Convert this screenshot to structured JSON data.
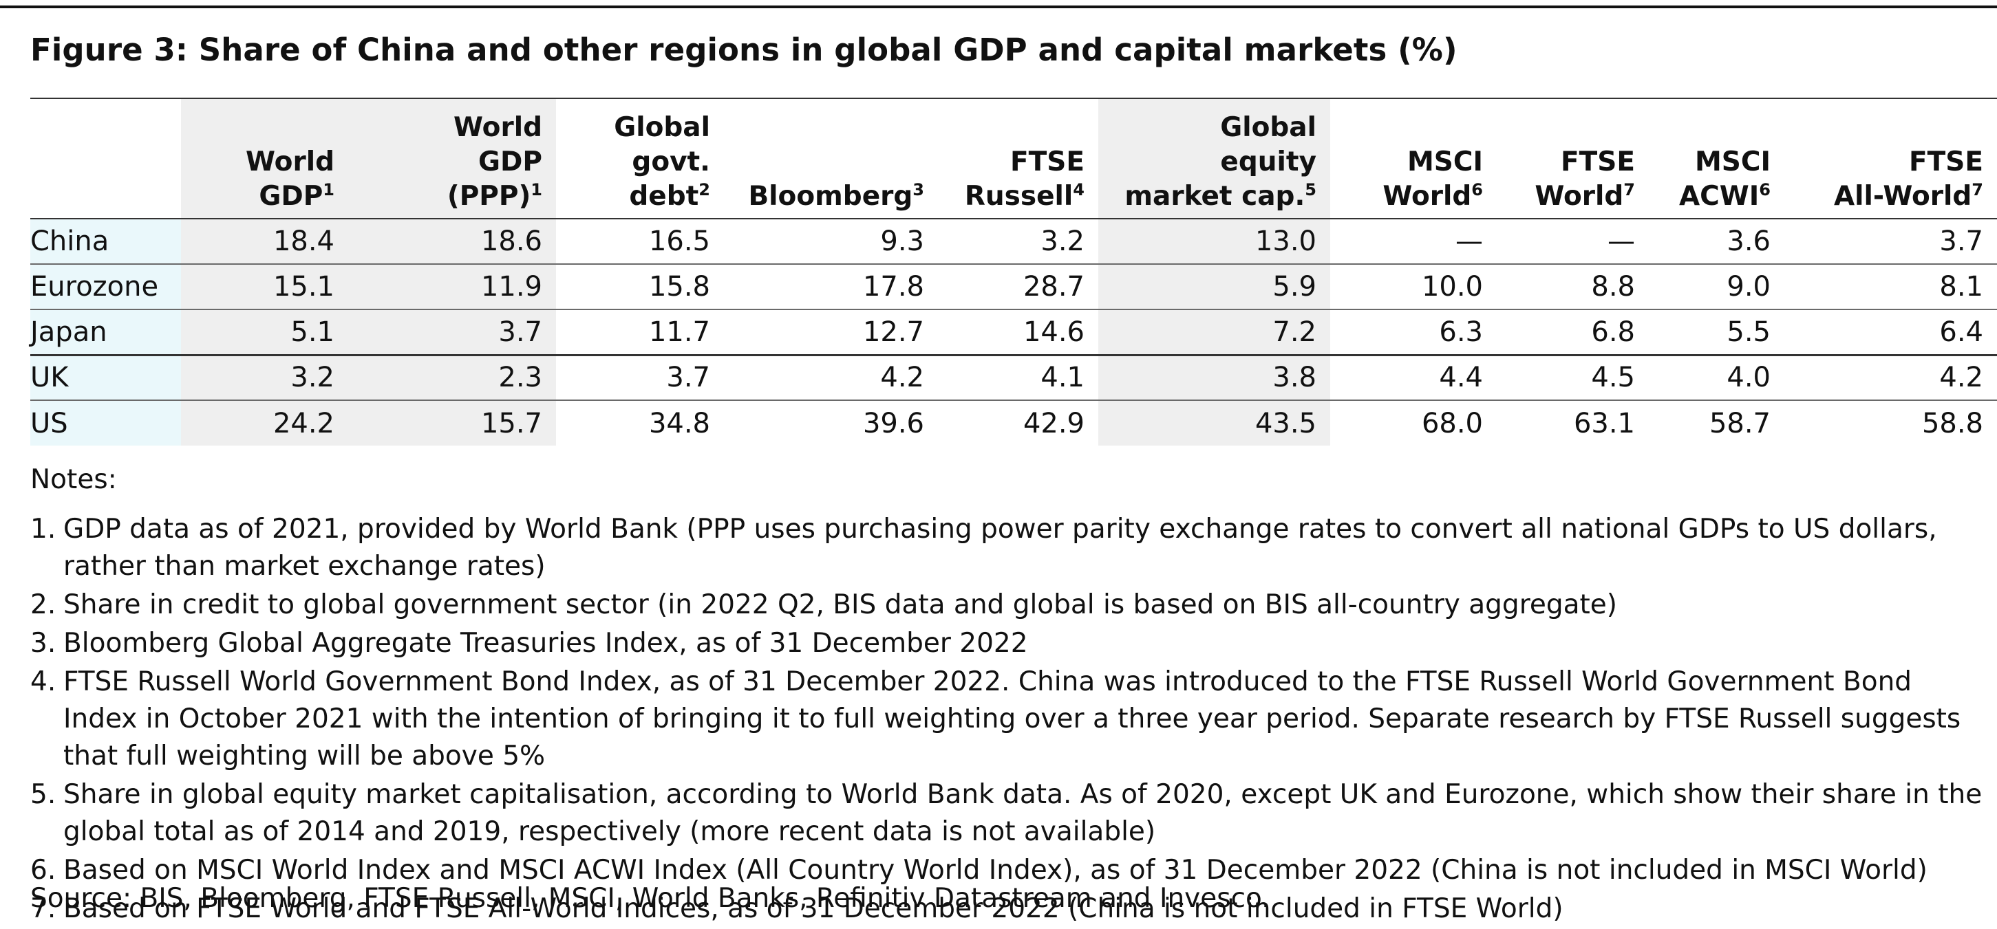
{
  "title": "Figure 3: Share of China and other regions in global GDP and capital markets (%)",
  "columns": [
    {
      "lines": [
        "World",
        "GDP"
      ],
      "sup": "1"
    },
    {
      "lines": [
        "World",
        "GDP",
        "(PPP)"
      ],
      "sup": "1"
    },
    {
      "lines": [
        "Global",
        "govt.",
        "debt"
      ],
      "sup": "2"
    },
    {
      "lines": [
        "Bloomberg"
      ],
      "sup": "3"
    },
    {
      "lines": [
        "FTSE",
        "Russell"
      ],
      "sup": "4"
    },
    {
      "lines": [
        "Global",
        "equity",
        "market cap."
      ],
      "sup": "5"
    },
    {
      "lines": [
        "MSCI",
        "World"
      ],
      "sup": "6"
    },
    {
      "lines": [
        "FTSE",
        "World"
      ],
      "sup": "7"
    },
    {
      "lines": [
        "MSCI",
        "ACWI"
      ],
      "sup": "6"
    },
    {
      "lines": [
        "FTSE",
        "All-World"
      ],
      "sup": "7"
    }
  ],
  "rows": [
    {
      "region": "China",
      "values": [
        "18.4",
        "18.6",
        "16.5",
        "9.3",
        "3.2",
        "13.0",
        "—",
        "—",
        "3.6",
        "3.7"
      ]
    },
    {
      "region": "Eurozone",
      "values": [
        "15.1",
        "11.9",
        "15.8",
        "17.8",
        "28.7",
        "5.9",
        "10.0",
        "8.8",
        "9.0",
        "8.1"
      ]
    },
    {
      "region": "Japan",
      "values": [
        "5.1",
        "3.7",
        "11.7",
        "12.7",
        "14.6",
        "7.2",
        "6.3",
        "6.8",
        "5.5",
        "6.4"
      ]
    },
    {
      "region": "UK",
      "values": [
        "3.2",
        "2.3",
        "3.7",
        "4.2",
        "4.1",
        "3.8",
        "4.4",
        "4.5",
        "4.0",
        "4.2"
      ]
    },
    {
      "region": "US",
      "values": [
        "24.2",
        "15.7",
        "34.8",
        "39.6",
        "42.9",
        "43.5",
        "68.0",
        "63.1",
        "58.7",
        "58.8"
      ]
    }
  ],
  "notes_label": "Notes:",
  "notes": [
    {
      "num": "1.",
      "text": "GDP data as of 2021, provided by World Bank (PPP uses purchasing power parity exchange rates to convert all national GDPs to US dollars, rather than market exchange rates)"
    },
    {
      "num": "2.",
      "text": "Share in credit to global government sector (in 2022 Q2, BIS data and global is based on BIS all-country aggregate)"
    },
    {
      "num": "3.",
      "text": "Bloomberg Global Aggregate Treasuries Index, as of 31 December 2022"
    },
    {
      "num": "4.",
      "text": "FTSE Russell World Government Bond Index, as of 31 December 2022. China was introduced to the FTSE Russell World Government Bond Index in October 2021 with the intention of bringing it to full weighting over a three year period. Separate research by FTSE Russell suggests that full weighting will be above 5%"
    },
    {
      "num": "5.",
      "text": "Share in global equity market capitalisation, according to World Bank data. As of 2020, except UK and Eurozone, which show their share in the global total as of 2014 and 2019, respectively (more recent data is not available)"
    },
    {
      "num": "6.",
      "text": "Based on MSCI World Index and MSCI ACWI Index (All Country World Index), as of 31 December 2022 (China is not included in MSCI World)"
    },
    {
      "num": "7.",
      "text": "Based on FTSE World and FTSE All-World Indices, as of 31 December 2022 (China is not included in FTSE World)"
    }
  ],
  "source": "Source: BIS, Bloomberg, FTSE Russell, MSCI, World Banks, Refinitiv Datastream and Invesco.",
  "colors": {
    "region_shade": "#eaf8fb",
    "column_shade": "#efefef",
    "text": "#111111"
  }
}
